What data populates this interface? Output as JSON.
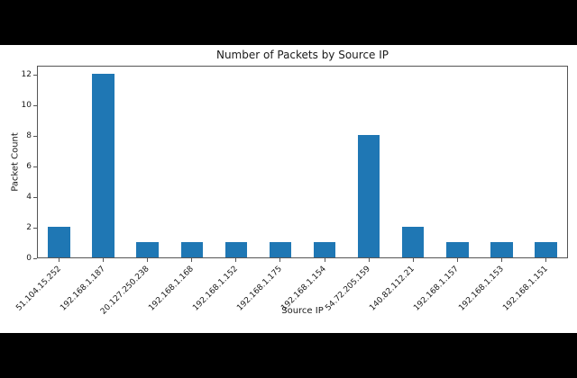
{
  "chart_data": {
    "type": "bar",
    "title": "Number of Packets by Source IP",
    "xlabel": "Source IP",
    "ylabel": "Packet Count",
    "categories": [
      "51.104.15.252",
      "192.168.1.187",
      "20.127.250.238",
      "192.168.1.168",
      "192.168.1.152",
      "192.168.1.175",
      "192.168.1.154",
      "54.72.205.159",
      "140.82.112.21",
      "192.168.1.157",
      "192.168.1.153",
      "192.168.1.151"
    ],
    "values": [
      2,
      12,
      1,
      1,
      1,
      1,
      1,
      8,
      2,
      1,
      1,
      1
    ],
    "yticks": [
      0,
      2,
      4,
      6,
      8,
      10,
      12
    ],
    "ylim": [
      0,
      12.6
    ],
    "bar_color": "#1f77b4",
    "bar_width_fraction": 0.5,
    "x_tick_rotation_deg": 45,
    "grid": false,
    "legend_position": "none"
  }
}
